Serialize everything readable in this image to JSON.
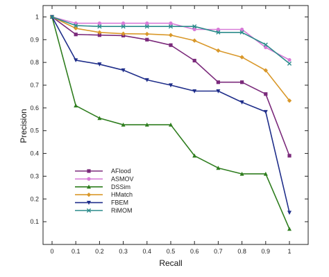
{
  "chart_data": {
    "type": "line",
    "title": "",
    "xlabel": "Recall",
    "ylabel": "Precision",
    "xlim": [
      0,
      1
    ],
    "ylim": [
      0,
      1.05
    ],
    "grid": false,
    "legend_position": "bottom-left",
    "x": [
      0,
      0.1,
      0.2,
      0.3,
      0.4,
      0.5,
      0.6,
      0.7,
      0.8,
      0.9,
      1
    ],
    "x_tick_labels": [
      "0",
      "0.1",
      "0.2",
      "0.3",
      "0.4",
      "0.5",
      "0.6",
      "0.7",
      "0.8",
      "0.9",
      "1"
    ],
    "y_ticks": [
      0.1,
      0.2,
      0.3,
      0.4,
      0.5,
      0.6,
      0.7,
      0.8,
      0.9,
      1
    ],
    "y_tick_labels": [
      "0.1",
      "0.2",
      "0.3",
      "0.4",
      "0.5",
      "0.6",
      "0.7",
      "0.8",
      "0.9",
      "1"
    ],
    "series": [
      {
        "name": "AFlood",
        "color": "#7b2a7b",
        "marker": "square",
        "values": [
          1.0,
          0.923,
          0.92,
          0.918,
          0.9,
          0.876,
          0.808,
          0.713,
          0.713,
          0.661,
          0.39
        ]
      },
      {
        "name": "ASMOV",
        "color": "#d77ad7",
        "marker": "circle",
        "values": [
          1.0,
          0.972,
          0.972,
          0.972,
          0.972,
          0.972,
          0.945,
          0.945,
          0.945,
          0.866,
          0.811
        ]
      },
      {
        "name": "DSSim",
        "color": "#2e7d1e",
        "marker": "triangle-up",
        "values": [
          1.0,
          0.61,
          0.555,
          0.526,
          0.526,
          0.526,
          0.39,
          0.336,
          0.31,
          0.31,
          0.068
        ]
      },
      {
        "name": "HMatch",
        "color": "#d9982a",
        "marker": "diamond",
        "values": [
          1.0,
          0.95,
          0.932,
          0.926,
          0.925,
          0.92,
          0.896,
          0.852,
          0.823,
          0.765,
          0.632
        ]
      },
      {
        "name": "FBEM",
        "color": "#1f2e8a",
        "marker": "triangle-down",
        "values": [
          1.0,
          0.81,
          0.792,
          0.766,
          0.723,
          0.7,
          0.674,
          0.674,
          0.625,
          0.583,
          0.14
        ]
      },
      {
        "name": "RiMOM",
        "color": "#2a8a8a",
        "marker": "x",
        "values": [
          1.0,
          0.962,
          0.958,
          0.958,
          0.958,
          0.958,
          0.958,
          0.932,
          0.932,
          0.878,
          0.795
        ]
      }
    ]
  }
}
